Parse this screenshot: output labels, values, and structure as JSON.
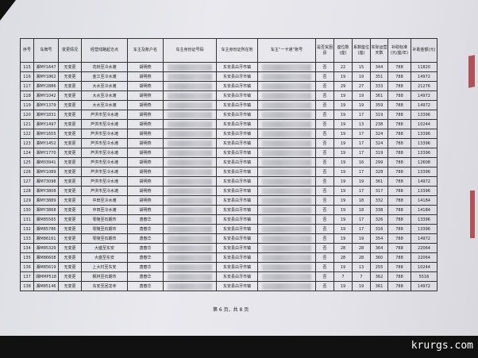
{
  "table": {
    "headers": [
      "序号",
      "车牌号",
      "变更情况",
      "经营线路起讫点",
      "车主及账户名",
      "车主身份证号码",
      "车主身份证所在地",
      "车主“一卡通”账号",
      "是否贫困县",
      "座位数(座)",
      "系数座位(座)",
      "实际运营天数",
      "补助标准(元/座/年)",
      "补助金额(元)"
    ],
    "rows": [
      [
        "115",
        "湘MY1647",
        "无变更",
        "花桥至冷水滩",
        "胡明燕",
        "",
        "东安县白牙市镇",
        "",
        "否",
        "22",
        "15",
        "344",
        "788",
        "11820"
      ],
      [
        "116",
        "湘MY1862",
        "无变更",
        "金江至冷水滩",
        "胡明燕",
        "",
        "东安县白牙市镇",
        "",
        "否",
        "19",
        "19",
        "351",
        "788",
        "14972"
      ],
      [
        "117",
        "湘MY2886",
        "无变更",
        "大水至冷水滩",
        "胡明燕",
        "",
        "东安县白牙市镇",
        "",
        "否",
        "29",
        "27",
        "333",
        "788",
        "21276"
      ],
      [
        "118",
        "湘MY1042",
        "无变更",
        "大水至冷水滩",
        "胡明燕",
        "",
        "东安县白牙市镇",
        "",
        "否",
        "19",
        "19",
        "361",
        "788",
        "14972"
      ],
      [
        "119",
        "湘MY1379",
        "无变更",
        "大水至冷水滩",
        "胡明燕",
        "",
        "东安县白牙市镇",
        "",
        "否",
        "19",
        "19",
        "359",
        "788",
        "14972"
      ],
      [
        "120",
        "湘MY1831",
        "无变更",
        "芦洪市至冷水滩",
        "胡明燕",
        "",
        "东安县白牙市镇",
        "",
        "否",
        "19",
        "17",
        "319",
        "788",
        "13396"
      ],
      [
        "121",
        "湘MY1497",
        "无变更",
        "芦洪市至冷水滩",
        "胡明燕",
        "",
        "东安县白牙市镇",
        "",
        "否",
        "19",
        "13",
        "238",
        "788",
        "10244"
      ],
      [
        "122",
        "湘MY1655",
        "无变更",
        "芦洪市至冷水滩",
        "胡明燕",
        "",
        "东安县白牙市镇",
        "",
        "否",
        "19",
        "17",
        "324",
        "788",
        "13396"
      ],
      [
        "123",
        "湘MY1452",
        "无变更",
        "芦洪市至冷水滩",
        "胡明燕",
        "",
        "东安县白牙市镇",
        "",
        "否",
        "19",
        "17",
        "324",
        "788",
        "13396"
      ],
      [
        "124",
        "湘MY1770",
        "无变更",
        "芦洪市至冷水滩",
        "胡明燕",
        "",
        "东安县白牙市镇",
        "",
        "否",
        "19",
        "17",
        "319",
        "788",
        "13396"
      ],
      [
        "125",
        "湘M03941",
        "无变更",
        "芦洪市至冷水滩",
        "胡明燕",
        "",
        "东安县白牙市镇",
        "",
        "否",
        "19",
        "16",
        "299",
        "788",
        "12608"
      ],
      [
        "126",
        "湘MY1089",
        "无变更",
        "芦洪市至冷水滩",
        "胡明燕",
        "",
        "东安县白牙市镇",
        "",
        "否",
        "19",
        "17",
        "328",
        "788",
        "13396"
      ],
      [
        "127",
        "湘M73098",
        "无变更",
        "芦洪市至冷水滩",
        "胡明燕",
        "",
        "东安县白牙市镇",
        "",
        "否",
        "19",
        "19",
        "361",
        "788",
        "14972"
      ],
      [
        "128",
        "湘MY3808",
        "无变更",
        "芦洪市至冷水滩",
        "胡明燕",
        "",
        "东安县白牙市镇",
        "",
        "否",
        "19",
        "17",
        "317",
        "788",
        "13396"
      ],
      [
        "129",
        "湘MY3889",
        "无变更",
        "中田至冷水滩",
        "胡明燕",
        "",
        "东安县白牙市镇",
        "",
        "否",
        "19",
        "18",
        "332",
        "788",
        "14184"
      ],
      [
        "130",
        "湘MY3868",
        "无变更",
        "中田至冷水滩",
        "胡明燕",
        "",
        "东安县白牙市镇",
        "",
        "否",
        "19",
        "18",
        "338",
        "788",
        "14184"
      ],
      [
        "131",
        "湘M85565",
        "无变更",
        "零陵至石期市",
        "唐春华",
        "",
        "东安县白牙市镇",
        "",
        "否",
        "19",
        "17",
        "326",
        "788",
        "13396"
      ],
      [
        "132",
        "湘M85786",
        "无变更",
        "零陵至石期市",
        "唐春华",
        "",
        "东安县白牙市镇",
        "",
        "否",
        "19",
        "17",
        "316",
        "788",
        "13396"
      ],
      [
        "133",
        "湘M86161",
        "无变更",
        "零陵至石期市",
        "唐春华",
        "",
        "东安县白牙市镇",
        "",
        "否",
        "19",
        "19",
        "354",
        "788",
        "14972"
      ],
      [
        "134",
        "湘M85329",
        "无变更",
        "大盛至东安",
        "唐春华",
        "",
        "东安县白牙市镇",
        "",
        "否",
        "28",
        "28",
        "364",
        "788",
        "22064"
      ],
      [
        "135",
        "湘M86608",
        "无变更",
        "大盛至东安",
        "唐春华",
        "",
        "东安县白牙市镇",
        "",
        "否",
        "28",
        "28",
        "360",
        "788",
        "22064"
      ],
      [
        "136",
        "湘M85619",
        "无变更",
        "上大村至东安",
        "唐春华",
        "",
        "东安县白牙市镇",
        "",
        "否",
        "19",
        "13",
        "255",
        "788",
        "10244"
      ],
      [
        "137",
        "湘MMP518",
        "无变更",
        "枫林至石期市",
        "唐春华",
        "",
        "东安县白牙市镇",
        "",
        "否",
        "7",
        "7",
        "362",
        "788",
        "5516"
      ],
      [
        "138",
        "湘M85146",
        "无变更",
        "东安至回龙寺",
        "唐春华",
        "",
        "东安县白牙市镇",
        "",
        "否",
        "19",
        "19",
        "361",
        "788",
        "14972"
      ]
    ],
    "redacted_columns": [
      5,
      7
    ]
  },
  "footer": {
    "page_label": "第 6 页，共 8 页"
  },
  "watermark": "krurgs.com",
  "colors": {
    "stamp": "#a0252a"
  }
}
